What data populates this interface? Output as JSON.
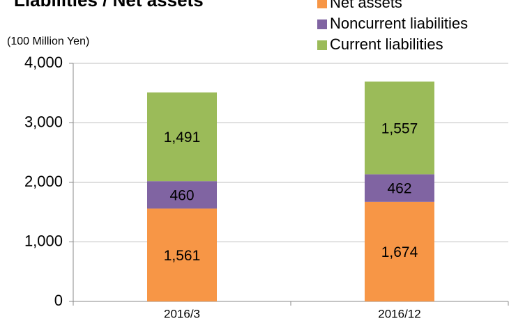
{
  "chart_data": {
    "type": "stacked_bar",
    "title": "Liabilities / Net assets",
    "y_axis_label": "(100 Million Yen)",
    "categories": [
      "2016/3",
      "2016/12"
    ],
    "series": [
      {
        "name": "Net assets",
        "color": "#f79646",
        "values": [
          1561,
          1674
        ],
        "value_labels": [
          "1,561",
          "1,674"
        ]
      },
      {
        "name": "Noncurrent liabilities",
        "color": "#8064a2",
        "values": [
          460,
          462
        ]
      },
      {
        "name": "Current liabilities",
        "color": "#9bbb59",
        "values": [
          1491,
          1557
        ],
        "value_labels": [
          "1,491",
          "1,557"
        ]
      }
    ],
    "ylim": [
      0,
      4000
    ],
    "yticks": [
      0,
      {
        "value": 1000,
        "label": "1,000"
      },
      {
        "value": 2000,
        "label": "2,000"
      },
      {
        "value": 3000,
        "label": "3,000"
      },
      {
        "value": 4000,
        "label": "4,000"
      }
    ],
    "grid": true,
    "legend": "top-right"
  }
}
